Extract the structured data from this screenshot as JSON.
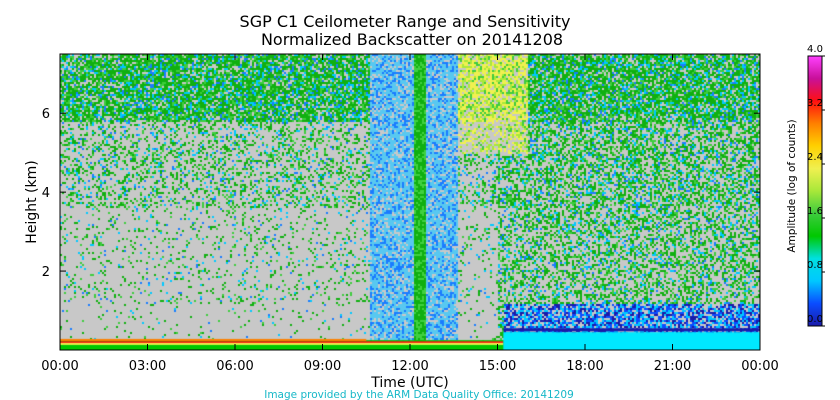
{
  "chart_data": {
    "type": "heatmap",
    "title": "SGP C1 Ceilometer Range and Sensitivity",
    "subtitle": "Normalized Backscatter on 20141208",
    "xlabel": "Time (UTC)",
    "ylabel": "Height (km)",
    "x_ticks": [
      "00:00",
      "03:00",
      "06:00",
      "09:00",
      "12:00",
      "15:00",
      "18:00",
      "21:00",
      "00:00"
    ],
    "x_tick_hours": [
      0,
      3,
      6,
      9,
      12,
      15,
      18,
      21,
      24
    ],
    "xlim_hours": [
      0,
      24
    ],
    "y_ticks": [
      "2",
      "4",
      "6"
    ],
    "y_tick_values": [
      2,
      4,
      6
    ],
    "ylim": [
      0,
      7.5
    ],
    "colorbar": {
      "label": "Amplitude (log of counts)",
      "ticks": [
        "0.0",
        "0.8",
        "1.6",
        "2.4",
        "3.2",
        "4.0"
      ],
      "tick_values": [
        0.0,
        0.8,
        1.6,
        2.4,
        3.2,
        4.0
      ],
      "range": [
        0.0,
        4.0
      ],
      "colors": [
        "#1a1aa8",
        "#0a4cff",
        "#00c8ff",
        "#00e0e0",
        "#00c800",
        "#3ecc3e",
        "#a8e83a",
        "#f0f050",
        "#ffd000",
        "#ff8000",
        "#ff1010",
        "#c8109a",
        "#ff40ff"
      ]
    },
    "no_data_color": "#c8c8c8",
    "features": [
      {
        "name": "surface layer",
        "hours": [
          0,
          24
        ],
        "height_km": [
          0,
          0.25
        ]
      },
      {
        "name": "dense noise band",
        "hours": [
          10.5,
          13.6
        ],
        "height_km": [
          0,
          7.5
        ]
      },
      {
        "name": "elevated scatter",
        "hours": [
          15.2,
          24
        ],
        "height_km": [
          0,
          0.6
        ]
      }
    ]
  },
  "credit": "Image provided by the ARM Data Quality Office: 20141209"
}
